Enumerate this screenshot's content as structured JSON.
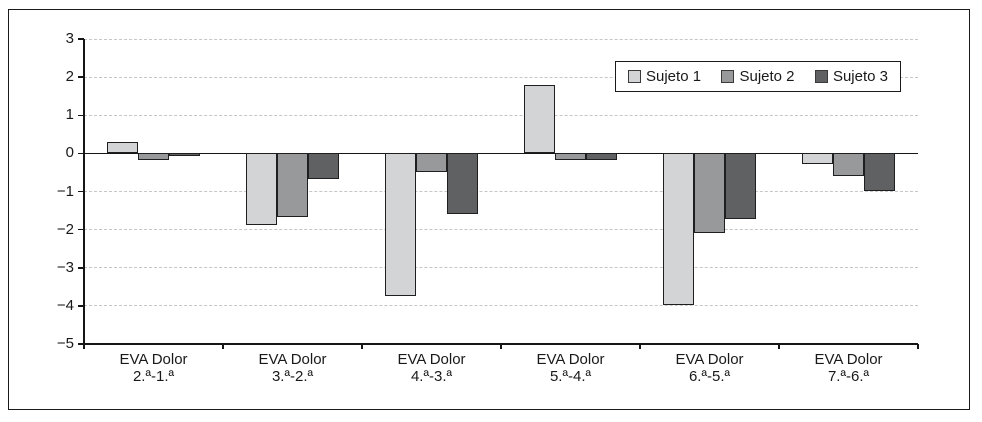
{
  "figure": {
    "background": "#ffffff",
    "border_color": "#1a1a1a"
  },
  "chart_data": {
    "type": "bar",
    "title": "",
    "xlabel": "",
    "ylabel": "",
    "categories": [
      "EVA Dolor\n2.ª-1.ª",
      "EVA Dolor\n3.ª-2.ª",
      "EVA Dolor\n4.ª-3.ª",
      "EVA Dolor\n5.ª-4.ª",
      "EVA Dolor\n6.ª-5.ª",
      "EVA Dolor\n7.ª-6.ª"
    ],
    "series": [
      {
        "name": "Sujeto 1",
        "color": "#d3d4d5",
        "values": [
          0.3,
          -1.9,
          -3.75,
          1.8,
          -4.0,
          -0.3
        ]
      },
      {
        "name": "Sujeto 2",
        "color": "#98999b",
        "values": [
          -0.2,
          -1.7,
          -0.5,
          -0.2,
          -2.1,
          -0.6
        ]
      },
      {
        "name": "Sujeto 3",
        "color": "#5f6163",
        "values": [
          -0.1,
          -0.7,
          -1.6,
          -0.2,
          -1.75,
          -1.0
        ]
      }
    ],
    "ylim": [
      -5,
      3
    ],
    "yticks": [
      3,
      2,
      1,
      0,
      -1,
      -2,
      -3,
      -4,
      -5
    ],
    "ytick_labels": [
      "3",
      "2",
      "1",
      "0",
      "−1",
      "−2",
      "−3",
      "−4",
      "−5"
    ],
    "grid": "horizontal dashed at each integer",
    "gridline_color": "#c6c6c6",
    "axis_color": "#161616",
    "bar_border_color": "#1f1f1f",
    "legend_position": "top-right inside plot"
  }
}
